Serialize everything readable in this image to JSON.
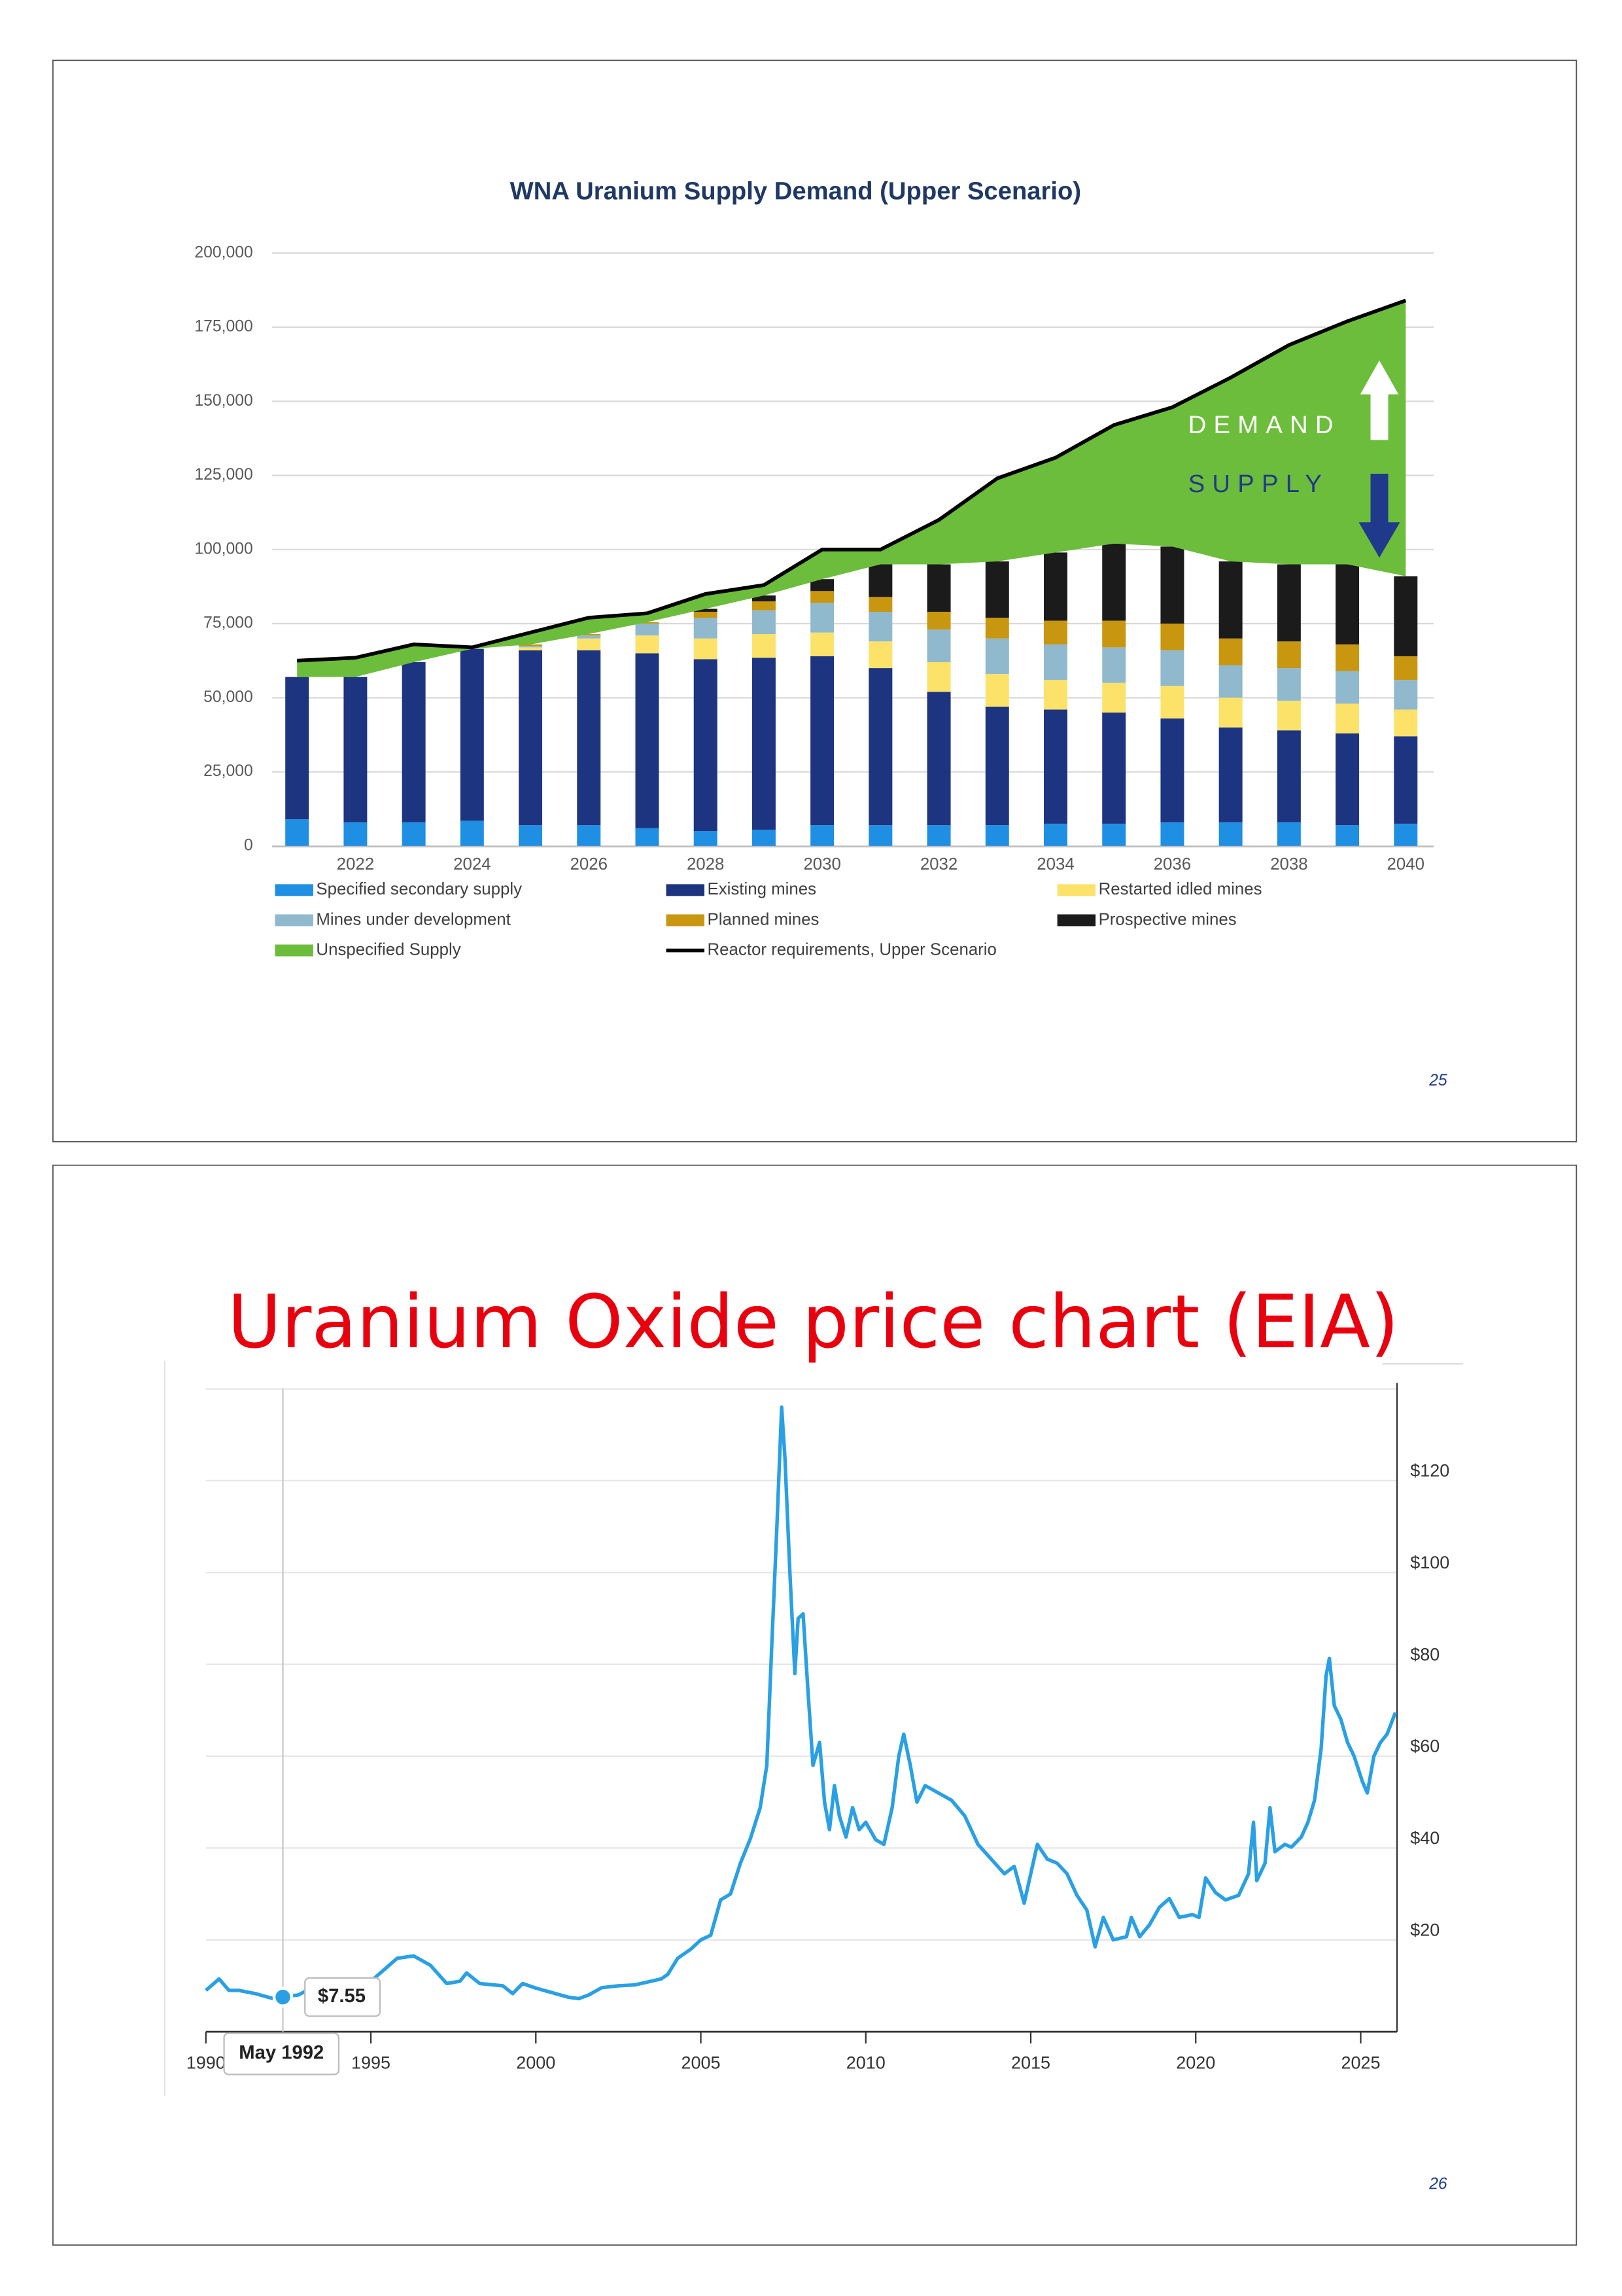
{
  "page_numbers": [
    25,
    26
  ],
  "chart_data": [
    {
      "type": "stacked-bar",
      "title": "WNA Uranium Supply Demand (Upper Scenario)",
      "categories": [
        null,
        "2022",
        null,
        "2024",
        null,
        "2026",
        null,
        "2028",
        null,
        "2030",
        null,
        "2032",
        null,
        "2034",
        null,
        "2036",
        null,
        "2038",
        null,
        "2040"
      ],
      "series": [
        {
          "name": "Specified secondary supply",
          "kind": "bar",
          "color": "#1f8fe3",
          "values": [
            9000,
            8000,
            8000,
            8500,
            7000,
            7000,
            6000,
            5000,
            5500,
            7000,
            7000,
            7000,
            7000,
            7500,
            7500,
            8000,
            8000,
            8000,
            7000,
            7500
          ]
        },
        {
          "name": "Existing mines",
          "kind": "bar",
          "color": "#1d3480",
          "values": [
            48000,
            49000,
            54000,
            58000,
            59000,
            59000,
            59000,
            58000,
            58000,
            57000,
            53000,
            45000,
            40000,
            38500,
            37500,
            35000,
            32000,
            31000,
            31000,
            29500
          ]
        },
        {
          "name": "Restarted idled mines",
          "kind": "bar",
          "color": "#fde26a",
          "values": [
            0,
            0,
            0,
            0,
            1000,
            4000,
            6000,
            7000,
            8000,
            8000,
            9000,
            10000,
            11000,
            10000,
            10000,
            11000,
            10000,
            10000,
            10000,
            9000
          ]
        },
        {
          "name": "Mines under development",
          "kind": "bar",
          "color": "#90b9cd",
          "values": [
            0,
            0,
            0,
            0,
            500,
            1000,
            4000,
            7000,
            8000,
            10000,
            10000,
            11000,
            12000,
            12000,
            12000,
            12000,
            11000,
            11000,
            11000,
            10000
          ]
        },
        {
          "name": "Planned mines",
          "kind": "bar",
          "color": "#c8960f",
          "values": [
            0,
            0,
            0,
            0,
            500,
            500,
            500,
            2000,
            3000,
            4000,
            5000,
            6000,
            7000,
            8000,
            9000,
            9000,
            9000,
            9000,
            9000,
            8000
          ]
        },
        {
          "name": "Prospective mines",
          "kind": "bar",
          "color": "#1b1b1b",
          "values": [
            0,
            0,
            0,
            0,
            0,
            0,
            0,
            1000,
            2000,
            4000,
            11000,
            16000,
            19000,
            23000,
            26000,
            26000,
            26000,
            26000,
            27000,
            27000
          ]
        },
        {
          "name": "Unspecified Supply",
          "kind": "area",
          "color": "#6dbd3c",
          "values": [
            5500,
            6500,
            6000,
            500,
            4000,
            5500,
            3000,
            5000,
            3500,
            10000,
            5000,
            15000,
            28000,
            32000,
            40000,
            47000,
            62000,
            74000,
            82000,
            93000
          ]
        },
        {
          "name": "Reactor requirements, Upper Scenario",
          "kind": "line",
          "color": "#000000",
          "values": [
            62500,
            63500,
            68000,
            67000,
            72000,
            77000,
            78500,
            85000,
            88000,
            100000,
            100000,
            110000,
            124000,
            131000,
            142000,
            148000,
            158000,
            169000,
            177000,
            184000
          ]
        }
      ],
      "ylim": [
        0,
        200000
      ],
      "yticks": [
        0,
        {
          "value": 25000,
          "label": "25,000"
        },
        {
          "value": 50000,
          "label": "50,000"
        },
        {
          "value": 75000,
          "label": "75,000"
        },
        {
          "value": 100000,
          "label": "100,000"
        },
        {
          "value": 125000,
          "label": "125,000"
        },
        {
          "value": 150000,
          "label": "150,000"
        },
        {
          "value": 175000,
          "label": "175,000"
        },
        {
          "value": 200000,
          "label": "200,000"
        }
      ],
      "grid": true,
      "annotations": [
        "DEMAND",
        "SUPPLY"
      ]
    },
    {
      "type": "line",
      "title": "Uranium Oxide price chart (EIA)",
      "x": [
        1990,
        1990.4,
        1990.7,
        1991,
        1991.5,
        1992,
        1992.8,
        1993.2,
        1993.6,
        1994,
        1994.5,
        1995,
        1995.8,
        1996.3,
        1996.8,
        1997.3,
        1997.7,
        1997.9,
        1998.3,
        1999,
        1999.3,
        1999.6,
        2000,
        2000.5,
        2001,
        2001.3,
        2001.6,
        2002,
        2002.5,
        2003,
        2003.5,
        2003.8,
        2004,
        2004.3,
        2004.7,
        2005,
        2005.3,
        2005.6,
        2005.9,
        2006.2,
        2006.5,
        2006.8,
        2007,
        2007.15,
        2007.3,
        2007.45,
        2007.55,
        2007.7,
        2007.85,
        2007.95,
        2008.1,
        2008.25,
        2008.4,
        2008.6,
        2008.75,
        2008.9,
        2009.05,
        2009.2,
        2009.4,
        2009.6,
        2009.8,
        2010,
        2010.3,
        2010.55,
        2010.8,
        2011,
        2011.15,
        2011.35,
        2011.55,
        2011.8,
        2012.2,
        2012.6,
        2013,
        2013.4,
        2013.8,
        2014.2,
        2014.5,
        2014.8,
        2015,
        2015.2,
        2015.5,
        2015.8,
        2016.1,
        2016.4,
        2016.7,
        2016.95,
        2017.2,
        2017.5,
        2017.9,
        2018.05,
        2018.3,
        2018.6,
        2018.9,
        2019.2,
        2019.5,
        2019.9,
        2020.1,
        2020.3,
        2020.6,
        2020.9,
        2021.3,
        2021.6,
        2021.75,
        2021.85,
        2022.1,
        2022.25,
        2022.4,
        2022.7,
        2022.9,
        2023.2,
        2023.4,
        2023.6,
        2023.8,
        2023.95,
        2024.05,
        2024.2,
        2024.4,
        2024.6,
        2024.8,
        2025.05,
        2025.2,
        2025.4,
        2025.6,
        2025.8,
        2026.05
      ],
      "series": [
        {
          "color": "#2aa0e4",
          "values": [
            9,
            11.5,
            9,
            9,
            8.3,
            7.3,
            8,
            9.5,
            10,
            10.5,
            10.5,
            11,
            16,
            16.5,
            14.5,
            10.5,
            11,
            12.8,
            10.5,
            10,
            8.3,
            10.5,
            9.5,
            8.5,
            7.5,
            7.2,
            8,
            9.6,
            10,
            10.2,
            11,
            11.5,
            12.5,
            16,
            18,
            20,
            21,
            28.7,
            30,
            36.7,
            42,
            48.8,
            58,
            84,
            109,
            136,
            125,
            100,
            78,
            90,
            91,
            74,
            58,
            63,
            50,
            44,
            53.6,
            47,
            42.4,
            48.8,
            44,
            45.6,
            41.8,
            40.8,
            48.8,
            60,
            64.8,
            58,
            50,
            53.6,
            52,
            50.4,
            47,
            40.8,
            37.6,
            34.4,
            36,
            28,
            34.4,
            40.8,
            37.6,
            36.7,
            34.4,
            29.7,
            26.5,
            18.5,
            24.9,
            20,
            20.7,
            24.9,
            20.7,
            23.3,
            27.1,
            29,
            24.9,
            25.5,
            24.9,
            33.5,
            30.3,
            28.7,
            29.7,
            34.4,
            45.6,
            32.9,
            36.7,
            48.8,
            39.2,
            40.8,
            40.2,
            42.4,
            45.6,
            50.4,
            61.6,
            77.5,
            81.3,
            71,
            68,
            63,
            60,
            54.5,
            52,
            60,
            63,
            64.8,
            69.5
          ]
        }
      ],
      "xlim": [
        1990,
        2026.1
      ],
      "xticks": [
        1990,
        1995,
        2000,
        2005,
        2010,
        2015,
        2020,
        2025
      ],
      "ylim": [
        0,
        140
      ],
      "yticks": [
        {
          "value": 20,
          "label": "$20"
        },
        {
          "value": 40,
          "label": "$40"
        },
        {
          "value": 60,
          "label": "$60"
        },
        {
          "value": 80,
          "label": "$80"
        },
        {
          "value": 100,
          "label": "$100"
        },
        {
          "value": 120,
          "label": "$120"
        }
      ],
      "grid": true,
      "highlight": {
        "x": "May 1992",
        "value": 7.55,
        "value_label": "$7.55"
      }
    }
  ]
}
